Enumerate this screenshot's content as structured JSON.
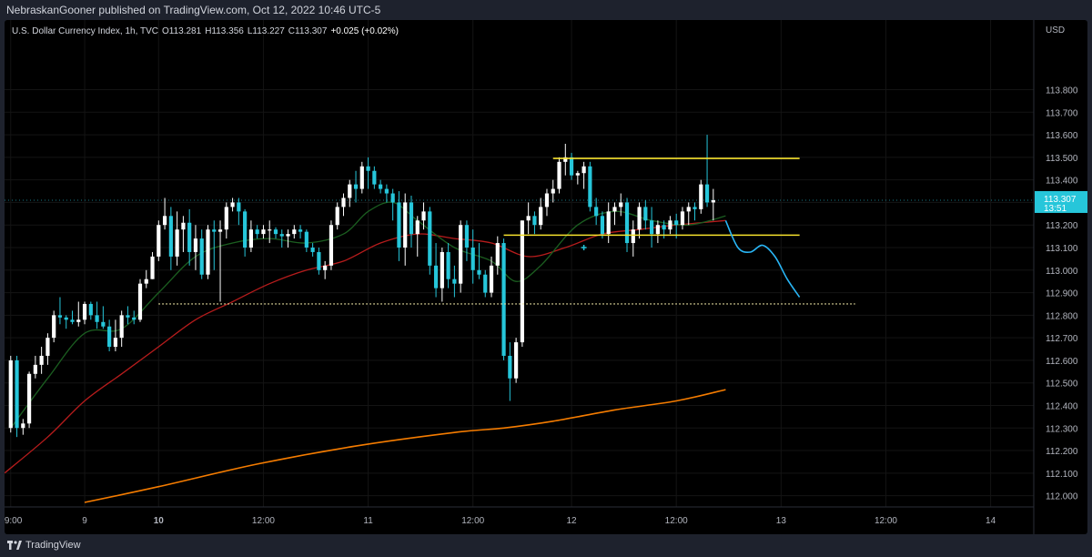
{
  "header": {
    "publisher_text": "NebraskanGooner published on TradingView.com, Oct 12, 2022 10:46 UTC-5"
  },
  "footer": {
    "brand": "TradingView"
  },
  "chart_data": {
    "type": "candlestick",
    "symbol": "U.S. Dollar Currency Index, 1h, TVC",
    "ohlc_text": {
      "o": "O113.281",
      "h": "H113.356",
      "l": "L113.227",
      "c": "C113.307",
      "chg": "+0.025 (+0.02%)"
    },
    "currency": "USD",
    "price_label": "113.307",
    "countdown_label": "13:51",
    "ylim": [
      111.95,
      114.02
    ],
    "xlim": [
      -1,
      166
    ],
    "yticks": [
      "112.000",
      "112.100",
      "112.200",
      "112.300",
      "112.400",
      "112.500",
      "112.600",
      "112.700",
      "112.800",
      "112.900",
      "113.000",
      "113.100",
      "113.200",
      "113.300",
      "113.400",
      "113.500",
      "113.600",
      "113.700",
      "113.800"
    ],
    "xticks": [
      {
        "i": 0,
        "label": "09:00",
        "bold": false
      },
      {
        "i": 12,
        "label": "9",
        "bold": false
      },
      {
        "i": 24,
        "label": "10",
        "bold": true
      },
      {
        "i": 41,
        "label": "12:00",
        "bold": false
      },
      {
        "i": 58,
        "label": "11",
        "bold": false
      },
      {
        "i": 75,
        "label": "12:00",
        "bold": false
      },
      {
        "i": 91,
        "label": "12",
        "bold": false
      },
      {
        "i": 108,
        "label": "12:00",
        "bold": false
      },
      {
        "i": 125,
        "label": "13",
        "bold": false
      },
      {
        "i": 142,
        "label": "12:00",
        "bold": false
      },
      {
        "i": 159,
        "label": "14",
        "bold": false
      }
    ],
    "candles": [
      [
        112.3,
        112.62,
        112.28,
        112.6
      ],
      [
        112.6,
        112.62,
        112.26,
        112.3
      ],
      [
        112.3,
        112.34,
        112.27,
        112.32
      ],
      [
        112.32,
        112.55,
        112.3,
        112.54
      ],
      [
        112.54,
        112.62,
        112.52,
        112.58
      ],
      [
        112.58,
        112.66,
        112.54,
        112.62
      ],
      [
        112.62,
        112.72,
        112.58,
        112.7
      ],
      [
        112.7,
        112.82,
        112.68,
        112.8
      ],
      [
        112.8,
        112.88,
        112.76,
        112.79
      ],
      [
        112.79,
        112.8,
        112.74,
        112.78
      ],
      [
        112.78,
        112.82,
        112.76,
        112.77
      ],
      [
        112.77,
        112.86,
        112.75,
        112.78
      ],
      [
        112.78,
        112.86,
        112.76,
        112.85
      ],
      [
        112.85,
        112.86,
        112.78,
        112.8
      ],
      [
        112.8,
        112.86,
        112.74,
        112.77
      ],
      [
        112.77,
        112.84,
        112.74,
        112.75
      ],
      [
        112.75,
        112.78,
        112.64,
        112.66
      ],
      [
        112.66,
        112.78,
        112.64,
        112.7
      ],
      [
        112.7,
        112.82,
        112.66,
        112.8
      ],
      [
        112.8,
        112.84,
        112.76,
        112.79
      ],
      [
        112.79,
        112.82,
        112.76,
        112.78
      ],
      [
        112.78,
        112.96,
        112.77,
        112.94
      ],
      [
        112.94,
        113.0,
        112.92,
        112.96
      ],
      [
        112.96,
        113.08,
        112.96,
        113.06
      ],
      [
        113.06,
        113.22,
        113.04,
        113.2
      ],
      [
        113.2,
        113.32,
        113.18,
        113.24
      ],
      [
        113.24,
        113.28,
        113.0,
        113.06
      ],
      [
        113.06,
        113.26,
        113.02,
        113.18
      ],
      [
        113.18,
        113.24,
        113.08,
        113.21
      ],
      [
        113.21,
        113.27,
        113.02,
        113.08
      ],
      [
        113.08,
        113.2,
        113.0,
        113.14
      ],
      [
        113.14,
        113.18,
        112.96,
        112.98
      ],
      [
        112.98,
        113.2,
        112.96,
        113.18
      ],
      [
        113.18,
        113.22,
        113.0,
        113.17
      ],
      [
        113.17,
        113.22,
        112.86,
        113.18
      ],
      [
        113.18,
        113.3,
        113.14,
        113.28
      ],
      [
        113.28,
        113.32,
        113.26,
        113.3
      ],
      [
        113.3,
        113.32,
        113.2,
        113.26
      ],
      [
        113.26,
        113.27,
        113.06,
        113.1
      ],
      [
        113.1,
        113.22,
        113.08,
        113.18
      ],
      [
        113.18,
        113.2,
        113.14,
        113.16
      ],
      [
        113.16,
        113.2,
        113.14,
        113.18
      ],
      [
        113.18,
        113.22,
        113.12,
        113.18
      ],
      [
        113.18,
        113.19,
        113.14,
        113.16
      ],
      [
        113.16,
        113.18,
        113.1,
        113.15
      ],
      [
        113.15,
        113.18,
        113.1,
        113.16
      ],
      [
        113.16,
        113.2,
        113.14,
        113.18
      ],
      [
        113.18,
        113.2,
        113.14,
        113.17
      ],
      [
        113.17,
        113.18,
        113.08,
        113.1
      ],
      [
        113.1,
        113.12,
        113.06,
        113.08
      ],
      [
        113.08,
        113.1,
        112.98,
        113.0
      ],
      [
        113.0,
        113.04,
        112.96,
        113.02
      ],
      [
        113.02,
        113.22,
        113.0,
        113.2
      ],
      [
        113.2,
        113.3,
        113.18,
        113.28
      ],
      [
        113.28,
        113.34,
        113.24,
        113.32
      ],
      [
        113.32,
        113.4,
        113.28,
        113.38
      ],
      [
        113.38,
        113.44,
        113.3,
        113.36
      ],
      [
        113.36,
        113.48,
        113.34,
        113.46
      ],
      [
        113.46,
        113.5,
        113.36,
        113.44
      ],
      [
        113.44,
        113.46,
        113.36,
        113.38
      ],
      [
        113.38,
        113.4,
        113.34,
        113.36
      ],
      [
        113.36,
        113.38,
        113.3,
        113.34
      ],
      [
        113.34,
        113.36,
        113.22,
        113.3
      ],
      [
        113.3,
        113.35,
        113.04,
        113.1
      ],
      [
        113.1,
        113.34,
        113.02,
        113.3
      ],
      [
        113.3,
        113.33,
        113.1,
        113.16
      ],
      [
        113.16,
        113.24,
        113.06,
        113.22
      ],
      [
        113.22,
        113.3,
        113.18,
        113.26
      ],
      [
        113.26,
        113.28,
        112.98,
        113.02
      ],
      [
        113.02,
        113.12,
        112.88,
        112.92
      ],
      [
        112.92,
        113.1,
        112.86,
        113.08
      ],
      [
        113.08,
        113.12,
        112.92,
        112.96
      ],
      [
        112.96,
        113.02,
        112.88,
        112.94
      ],
      [
        112.94,
        113.22,
        112.9,
        113.2
      ],
      [
        113.2,
        113.22,
        113.04,
        113.1
      ],
      [
        113.1,
        113.18,
        112.94,
        113.0
      ],
      [
        113.0,
        113.12,
        112.96,
        112.98
      ],
      [
        112.98,
        113.0,
        112.88,
        112.9
      ],
      [
        112.9,
        113.06,
        112.88,
        113.02
      ],
      [
        113.02,
        113.15,
        112.98,
        113.12
      ],
      [
        113.12,
        113.14,
        112.6,
        112.62
      ],
      [
        112.62,
        112.68,
        112.42,
        112.52
      ],
      [
        112.52,
        112.7,
        112.5,
        112.68
      ],
      [
        112.68,
        113.22,
        112.66,
        113.22
      ],
      [
        113.22,
        113.3,
        113.16,
        113.24
      ],
      [
        113.24,
        113.26,
        113.16,
        113.2
      ],
      [
        113.2,
        113.32,
        113.18,
        113.28
      ],
      [
        113.28,
        113.36,
        113.24,
        113.34
      ],
      [
        113.34,
        113.4,
        113.3,
        113.36
      ],
      [
        113.36,
        113.5,
        113.34,
        113.48
      ],
      [
        113.48,
        113.56,
        113.42,
        113.5
      ],
      [
        113.5,
        113.52,
        113.4,
        113.42
      ],
      [
        113.42,
        113.44,
        113.38,
        113.43
      ],
      [
        113.43,
        113.48,
        113.36,
        113.46
      ],
      [
        113.46,
        113.48,
        113.26,
        113.28
      ],
      [
        113.28,
        113.32,
        113.2,
        113.24
      ],
      [
        113.24,
        113.26,
        113.14,
        113.16
      ],
      [
        113.16,
        113.3,
        113.12,
        113.26
      ],
      [
        113.26,
        113.3,
        113.2,
        113.28
      ],
      [
        113.28,
        113.34,
        113.24,
        113.3
      ],
      [
        113.3,
        113.32,
        113.08,
        113.12
      ],
      [
        113.12,
        113.22,
        113.06,
        113.18
      ],
      [
        113.18,
        113.3,
        113.14,
        113.28
      ],
      [
        113.28,
        113.31,
        113.18,
        113.22
      ],
      [
        113.22,
        113.28,
        113.1,
        113.16
      ],
      [
        113.16,
        113.22,
        113.12,
        113.2
      ],
      [
        113.2,
        113.22,
        113.14,
        113.18
      ],
      [
        113.18,
        113.24,
        113.16,
        113.22
      ],
      [
        113.22,
        113.25,
        113.14,
        113.2
      ],
      [
        113.2,
        113.28,
        113.18,
        113.26
      ],
      [
        113.26,
        113.3,
        113.2,
        113.28
      ],
      [
        113.28,
        113.3,
        113.22,
        113.27
      ],
      [
        113.27,
        113.4,
        113.25,
        113.38
      ],
      [
        113.38,
        113.6,
        113.28,
        113.3
      ],
      [
        113.3,
        113.36,
        113.22,
        113.31
      ]
    ],
    "candle_x_index": [
      0,
      1,
      2,
      3,
      4,
      5,
      6,
      7,
      8,
      9,
      10,
      11,
      12,
      13,
      14,
      15,
      16,
      17,
      18,
      19,
      20,
      21,
      22,
      23,
      24,
      25,
      26,
      27,
      28,
      29,
      30,
      31,
      32,
      33,
      34,
      35,
      36,
      37,
      38,
      39,
      40,
      41,
      42,
      43,
      44,
      45,
      46,
      47,
      48,
      49,
      50,
      51,
      52,
      53,
      54,
      55,
      56,
      57,
      58,
      59,
      60,
      61,
      62,
      63,
      64,
      65,
      66,
      67,
      68,
      69,
      70,
      71,
      72,
      73,
      74,
      75,
      76,
      77,
      78,
      79,
      80,
      81,
      82,
      83,
      84,
      85,
      86,
      87,
      88,
      89,
      90,
      91,
      92,
      93,
      94,
      95,
      96,
      97,
      98,
      99,
      100,
      101,
      102,
      103,
      104,
      105,
      106,
      107,
      108,
      109,
      110,
      111,
      112,
      113,
      114,
      115,
      116
    ],
    "ema_fast": [
      [
        0,
        112.3
      ],
      [
        6,
        112.52
      ],
      [
        12,
        112.72
      ],
      [
        18,
        112.74
      ],
      [
        24,
        112.9
      ],
      [
        30,
        113.06
      ],
      [
        36,
        113.12
      ],
      [
        42,
        113.14
      ],
      [
        48,
        113.12
      ],
      [
        54,
        113.16
      ],
      [
        58,
        113.26
      ],
      [
        62,
        113.3
      ],
      [
        66,
        113.22
      ],
      [
        72,
        113.1
      ],
      [
        78,
        113.04
      ],
      [
        82,
        112.95
      ],
      [
        86,
        113.02
      ],
      [
        92,
        113.2
      ],
      [
        98,
        113.26
      ],
      [
        104,
        113.22
      ],
      [
        110,
        113.2
      ],
      [
        116,
        113.24
      ]
    ],
    "ema_slow": [
      [
        -1,
        112.1
      ],
      [
        6,
        112.26
      ],
      [
        12,
        112.42
      ],
      [
        18,
        112.54
      ],
      [
        24,
        112.66
      ],
      [
        30,
        112.78
      ],
      [
        36,
        112.86
      ],
      [
        42,
        112.94
      ],
      [
        48,
        113.0
      ],
      [
        54,
        113.04
      ],
      [
        60,
        113.12
      ],
      [
        66,
        113.16
      ],
      [
        72,
        113.14
      ],
      [
        78,
        113.12
      ],
      [
        84,
        113.06
      ],
      [
        90,
        113.1
      ],
      [
        96,
        113.16
      ],
      [
        102,
        113.18
      ],
      [
        108,
        113.2
      ],
      [
        116,
        113.22
      ]
    ],
    "ema_200": [
      [
        12,
        111.97
      ],
      [
        24,
        112.04
      ],
      [
        40,
        112.14
      ],
      [
        56,
        112.22
      ],
      [
        72,
        112.28
      ],
      [
        80,
        112.3
      ],
      [
        88,
        112.33
      ],
      [
        98,
        112.38
      ],
      [
        108,
        112.42
      ],
      [
        116,
        112.47
      ]
    ],
    "projection": [
      [
        116,
        113.22
      ],
      [
        118,
        113.1
      ],
      [
        120,
        113.08
      ],
      [
        122,
        113.11
      ],
      [
        124,
        113.06
      ],
      [
        126,
        112.96
      ],
      [
        128,
        112.88
      ]
    ],
    "levels": [
      {
        "name": "resistance",
        "price": 113.495,
        "from": 88,
        "to": 128,
        "color": "#f5e12d",
        "style": "solid"
      },
      {
        "name": "support",
        "price": 113.155,
        "from": 80,
        "to": 128,
        "color": "#f5e12d",
        "style": "solid"
      },
      {
        "name": "target",
        "price": 112.85,
        "from": 24,
        "to": 137,
        "color": "#e8e0a0",
        "style": "dotted"
      }
    ],
    "markers": [
      {
        "i": 93,
        "price": 113.1
      }
    ],
    "colors": {
      "up": "#ffffff",
      "down": "#26c6da",
      "ema_fast": "#1b5e20",
      "ema_slow": "#b71c1c",
      "ema_200": "#f57c00",
      "projection": "#29b6f6",
      "grid": "#141414",
      "axis_text": "#b2b5be",
      "price_tag": "#26c6da"
    }
  }
}
